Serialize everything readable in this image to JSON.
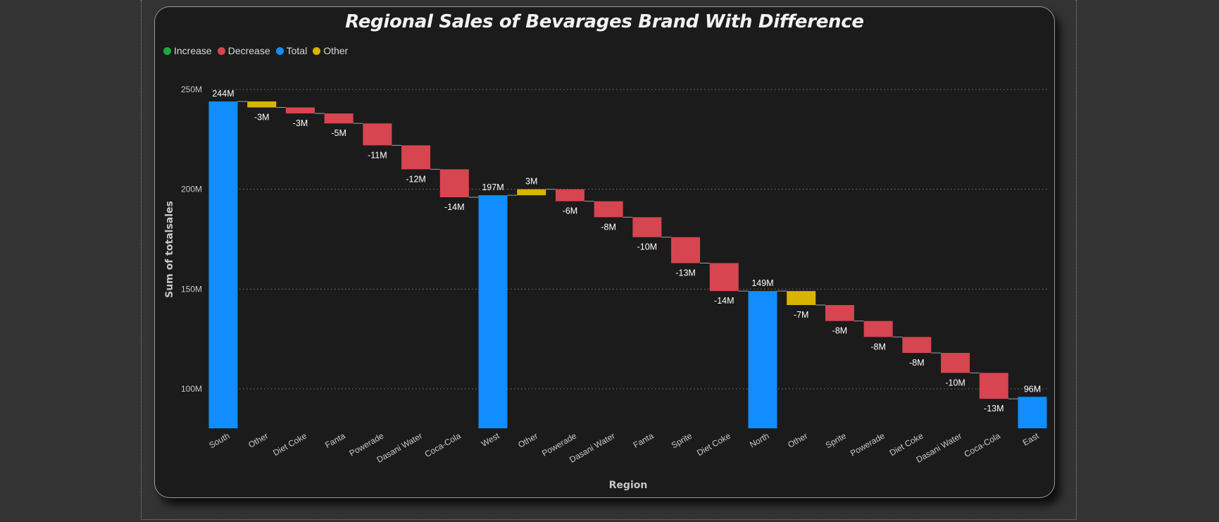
{
  "chart_data": {
    "type": "waterfall",
    "title": "Regional Sales of Bevarages Brand With Difference",
    "xlabel": "Region",
    "ylabel": "Sum of totalsales",
    "y_ticks": [
      "100M",
      "150M",
      "200M",
      "250M"
    ],
    "y_tick_values": [
      100,
      150,
      200,
      250
    ],
    "ylim": [
      80,
      258
    ],
    "grid": true,
    "legend_position": "top-left",
    "legend": [
      {
        "name": "Increase",
        "color": "#1aab40"
      },
      {
        "name": "Decrease",
        "color": "#d64550"
      },
      {
        "name": "Total",
        "color": "#118dff"
      },
      {
        "name": "Other",
        "color": "#d9b300"
      }
    ],
    "bars": [
      {
        "category": "South",
        "kind": "total",
        "value": 244,
        "label": "244M"
      },
      {
        "category": "Other",
        "kind": "other",
        "value": -3,
        "label": "-3M"
      },
      {
        "category": "Diet Coke",
        "kind": "decrease",
        "value": -3,
        "label": "-3M"
      },
      {
        "category": "Fanta",
        "kind": "decrease",
        "value": -5,
        "label": "-5M"
      },
      {
        "category": "Powerade",
        "kind": "decrease",
        "value": -11,
        "label": "-11M"
      },
      {
        "category": "Dasani Water",
        "kind": "decrease",
        "value": -12,
        "label": "-12M"
      },
      {
        "category": "Coca-Cola",
        "kind": "decrease",
        "value": -14,
        "label": "-14M"
      },
      {
        "category": "West",
        "kind": "total",
        "value": 197,
        "label": "197M"
      },
      {
        "category": "Other",
        "kind": "other",
        "value": 3,
        "label": "3M"
      },
      {
        "category": "Powerade",
        "kind": "decrease",
        "value": -6,
        "label": "-6M"
      },
      {
        "category": "Dasani Water",
        "kind": "decrease",
        "value": -8,
        "label": "-8M"
      },
      {
        "category": "Fanta",
        "kind": "decrease",
        "value": -10,
        "label": "-10M"
      },
      {
        "category": "Sprite",
        "kind": "decrease",
        "value": -13,
        "label": "-13M"
      },
      {
        "category": "Diet Coke",
        "kind": "decrease",
        "value": -14,
        "label": "-14M"
      },
      {
        "category": "North",
        "kind": "total",
        "value": 149,
        "label": "149M"
      },
      {
        "category": "Other",
        "kind": "other",
        "value": -7,
        "label": "-7M"
      },
      {
        "category": "Sprite",
        "kind": "decrease",
        "value": -8,
        "label": "-8M"
      },
      {
        "category": "Powerade",
        "kind": "decrease",
        "value": -8,
        "label": "-8M"
      },
      {
        "category": "Diet Coke",
        "kind": "decrease",
        "value": -8,
        "label": "-8M"
      },
      {
        "category": "Dasani Water",
        "kind": "decrease",
        "value": -10,
        "label": "-10M"
      },
      {
        "category": "Coca-Cola",
        "kind": "decrease",
        "value": -13,
        "label": "-13M"
      },
      {
        "category": "East",
        "kind": "total",
        "value": 96,
        "label": "96M"
      }
    ]
  },
  "colors": {
    "total": "#118dff",
    "decrease": "#d64550",
    "increase": "#1aab40",
    "other": "#d9b300",
    "grid": "#7a7a7a"
  }
}
